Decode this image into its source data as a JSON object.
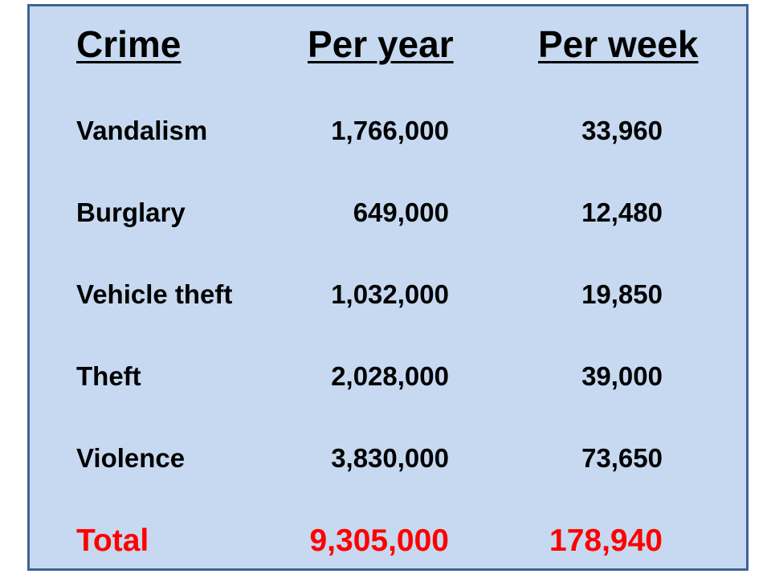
{
  "chart_data": {
    "type": "table",
    "columns": [
      "Crime",
      "Per year",
      "Per week"
    ],
    "rows": [
      {
        "crime": "Vandalism",
        "per_year": "1,766,000",
        "per_week": "33,960"
      },
      {
        "crime": "Burglary",
        "per_year": "649,000",
        "per_week": "12,480"
      },
      {
        "crime": "Vehicle theft",
        "per_year": "1,032,000",
        "per_week": "19,850"
      },
      {
        "crime": "Theft",
        "per_year": "2,028,000",
        "per_week": "39,000"
      },
      {
        "crime": "Violence",
        "per_year": "3,830,000",
        "per_week": "73,650"
      }
    ],
    "total": {
      "crime": "Total",
      "per_year": "9,305,000",
      "per_week": "178,940"
    }
  },
  "colors": {
    "panel_background": "#c6d9f0",
    "panel_border": "#3f6394",
    "total_text": "#ff0000"
  }
}
